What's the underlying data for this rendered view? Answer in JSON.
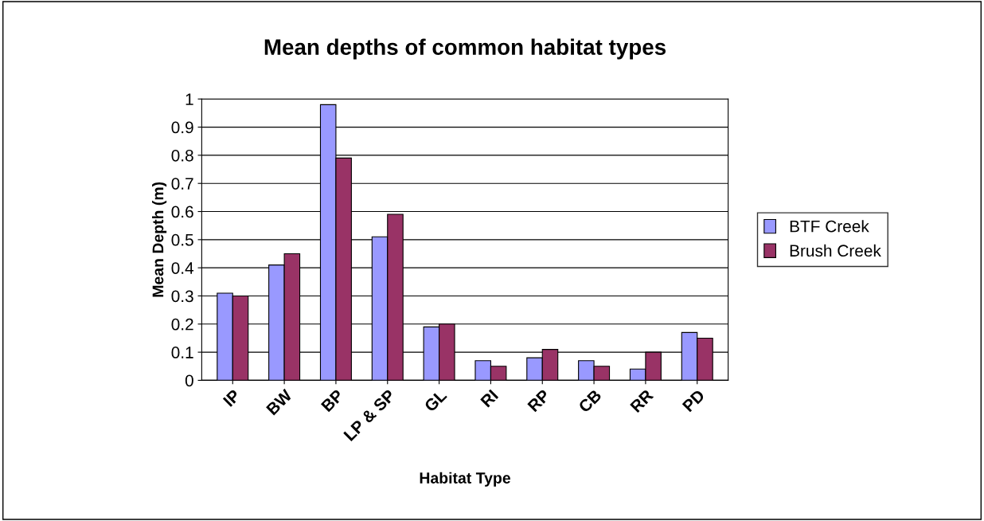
{
  "chart_data": {
    "type": "bar",
    "title": "Mean depths of common habitat types",
    "xlabel": "Habitat Type",
    "ylabel": "Mean Depth (m)",
    "categories": [
      "IP",
      "BW",
      "BP",
      "LP & SP",
      "GL",
      "RI",
      "RP",
      "CB",
      "RR",
      "PD"
    ],
    "series": [
      {
        "name": "BTF Creek",
        "color": "#9999ff",
        "values": [
          0.31,
          0.41,
          0.98,
          0.51,
          0.19,
          0.07,
          0.08,
          0.07,
          0.04,
          0.17
        ]
      },
      {
        "name": "Brush Creek",
        "color": "#993366",
        "values": [
          0.3,
          0.45,
          0.79,
          0.59,
          0.2,
          0.05,
          0.11,
          0.05,
          0.1,
          0.15
        ]
      }
    ],
    "ylim": [
      0,
      1
    ],
    "yticks": [
      0,
      0.1,
      0.2,
      0.3,
      0.4,
      0.5,
      0.6,
      0.7,
      0.8,
      0.9,
      1
    ],
    "grid": "y",
    "legend": "right"
  }
}
